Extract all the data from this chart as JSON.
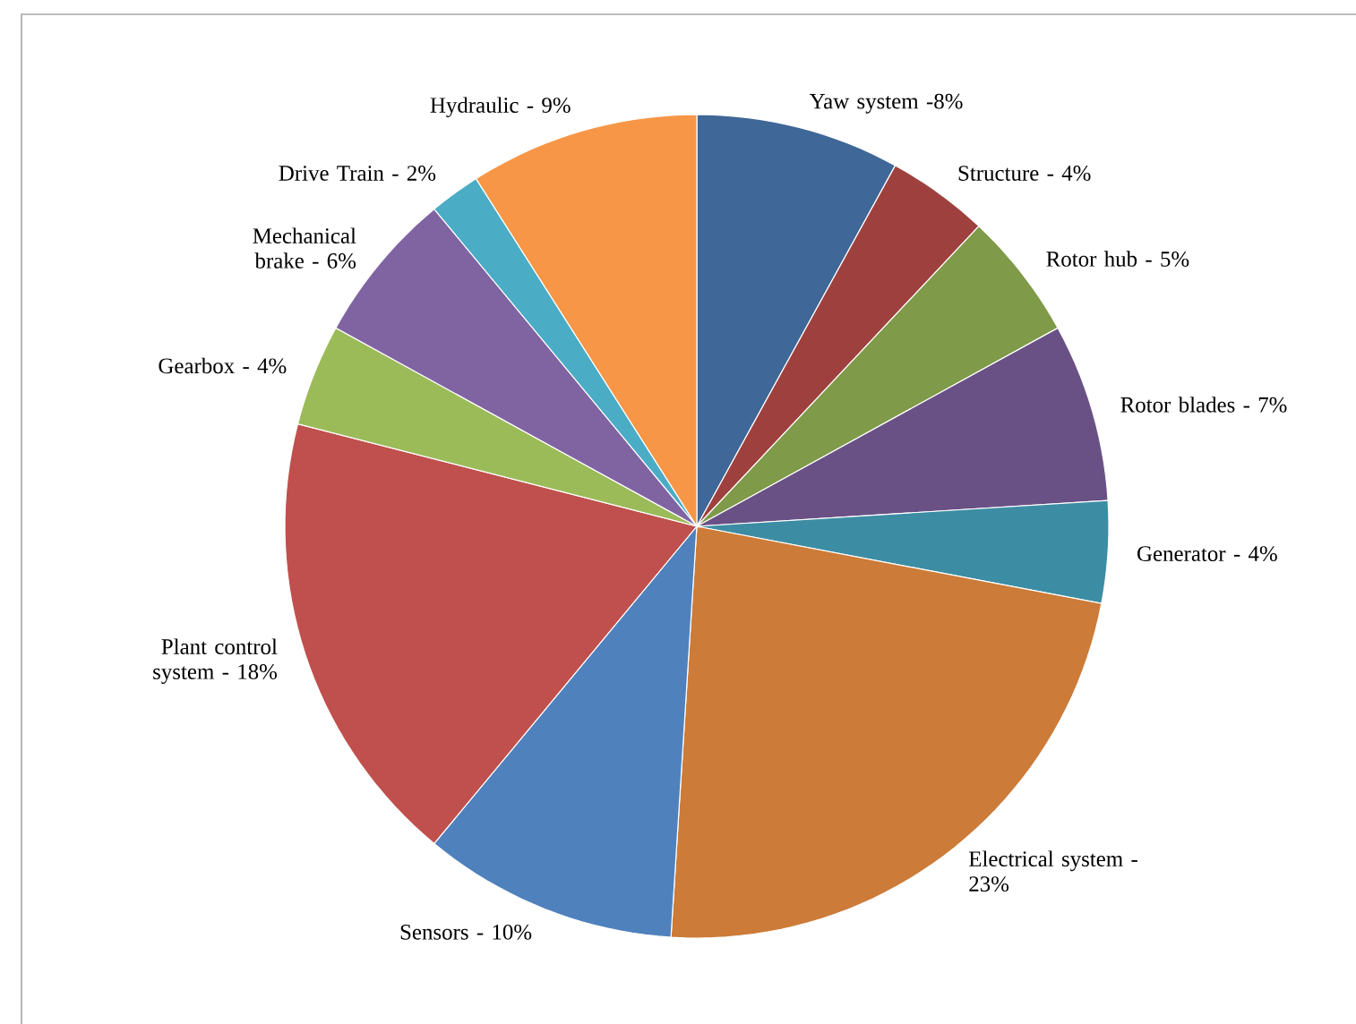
{
  "chart_data": {
    "type": "pie",
    "categories": [
      "Yaw system -8%",
      "Structure - 4%",
      "Rotor hub - 5%",
      "Rotor blades - 7%",
      "Generator - 4%",
      "Electrical system - 23%",
      "Sensors - 10%",
      "Plant control system - 18%",
      "Gearbox - 4%",
      "Mechanical brake - 6%",
      "Drive Train - 2%",
      "Hydraulic - 9%"
    ],
    "values": [
      8,
      4,
      5,
      7,
      4,
      23,
      10,
      18,
      4,
      6,
      2,
      9
    ],
    "colors": [
      "#3f6797",
      "#9e413e",
      "#7f9a48",
      "#695185",
      "#3c8da3",
      "#cc7b38",
      "#4f81bd",
      "#c0504d",
      "#9bbb59",
      "#8064a2",
      "#4bacc6",
      "#f79646"
    ]
  }
}
